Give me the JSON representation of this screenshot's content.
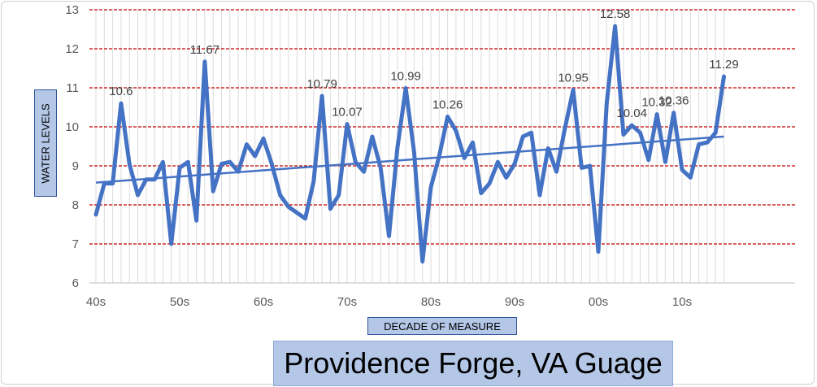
{
  "chart_data": {
    "type": "line",
    "title": "Providence Forge, VA Guage",
    "xlabel": "DECADE OF MEASURE",
    "ylabel": "WATER LEVELS",
    "ylim": [
      6,
      13
    ],
    "yticks": [
      6,
      7,
      8,
      9,
      10,
      11,
      12,
      13
    ],
    "grid": "horizontal-dashed",
    "legend": "none",
    "x_tick_labels": [
      {
        "label": "40s",
        "index": 0
      },
      {
        "label": "50s",
        "index": 10
      },
      {
        "label": "60s",
        "index": 20
      },
      {
        "label": "70s",
        "index": 30
      },
      {
        "label": "80s",
        "index": 40
      },
      {
        "label": "90s",
        "index": 50
      },
      {
        "label": "00s",
        "index": 60
      },
      {
        "label": "10s",
        "index": 70
      }
    ],
    "series": [
      {
        "values": [
          7.75,
          8.55,
          8.55,
          10.6,
          9.05,
          8.25,
          8.65,
          8.65,
          9.1,
          7.0,
          8.95,
          9.1,
          7.6,
          11.67,
          8.35,
          9.05,
          9.1,
          8.85,
          9.55,
          9.25,
          9.7,
          9.05,
          8.25,
          7.95,
          7.8,
          7.65,
          8.6,
          10.79,
          7.9,
          8.25,
          10.07,
          9.1,
          8.85,
          9.75,
          8.95,
          7.2,
          9.45,
          10.99,
          9.35,
          6.55,
          8.45,
          9.25,
          10.26,
          9.9,
          9.2,
          9.6,
          8.3,
          8.55,
          9.1,
          8.7,
          9.05,
          9.75,
          9.85,
          8.25,
          9.45,
          8.85,
          9.95,
          10.95,
          8.95,
          9.0,
          6.8,
          10.6,
          12.58,
          9.8,
          10.04,
          9.85,
          9.15,
          10.32,
          9.1,
          10.36,
          8.9,
          8.7,
          9.55,
          9.6,
          9.85,
          11.29
        ],
        "color": "#4472c4"
      }
    ],
    "trendline": {
      "start": 8.57,
      "end": 9.75,
      "color": "#4472c4"
    },
    "data_labels": [
      {
        "index": 3,
        "text": "10.6"
      },
      {
        "index": 13,
        "text": "11.67"
      },
      {
        "index": 27,
        "text": "10.79"
      },
      {
        "index": 30,
        "text": "10.07"
      },
      {
        "index": 37,
        "text": "10.99"
      },
      {
        "index": 42,
        "text": "10.26"
      },
      {
        "index": 57,
        "text": "10.95"
      },
      {
        "index": 62,
        "text": "12.58"
      },
      {
        "index": 64,
        "text": "10.04"
      },
      {
        "index": 67,
        "text": "10.32"
      },
      {
        "index": 69,
        "text": "10.36"
      },
      {
        "index": 75,
        "text": "11.29"
      }
    ],
    "gridline_color": "#c00000"
  }
}
